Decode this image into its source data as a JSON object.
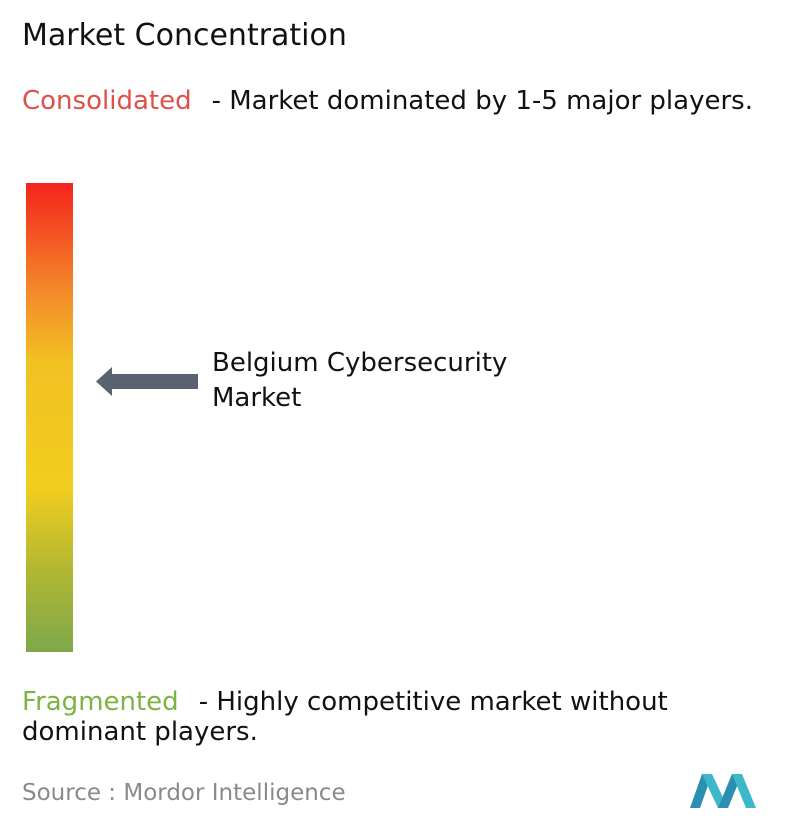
{
  "title": "Market Concentration",
  "consolidated": {
    "label": "Consolidated",
    "description": "- Market dominated by 1-5 major players."
  },
  "market": {
    "label": "Belgium Cybersecurity Market"
  },
  "fragmented": {
    "label": "Fragmented",
    "description": "- Highly competitive market without dominant players."
  },
  "source": "Source : Mordor Intelligence"
}
